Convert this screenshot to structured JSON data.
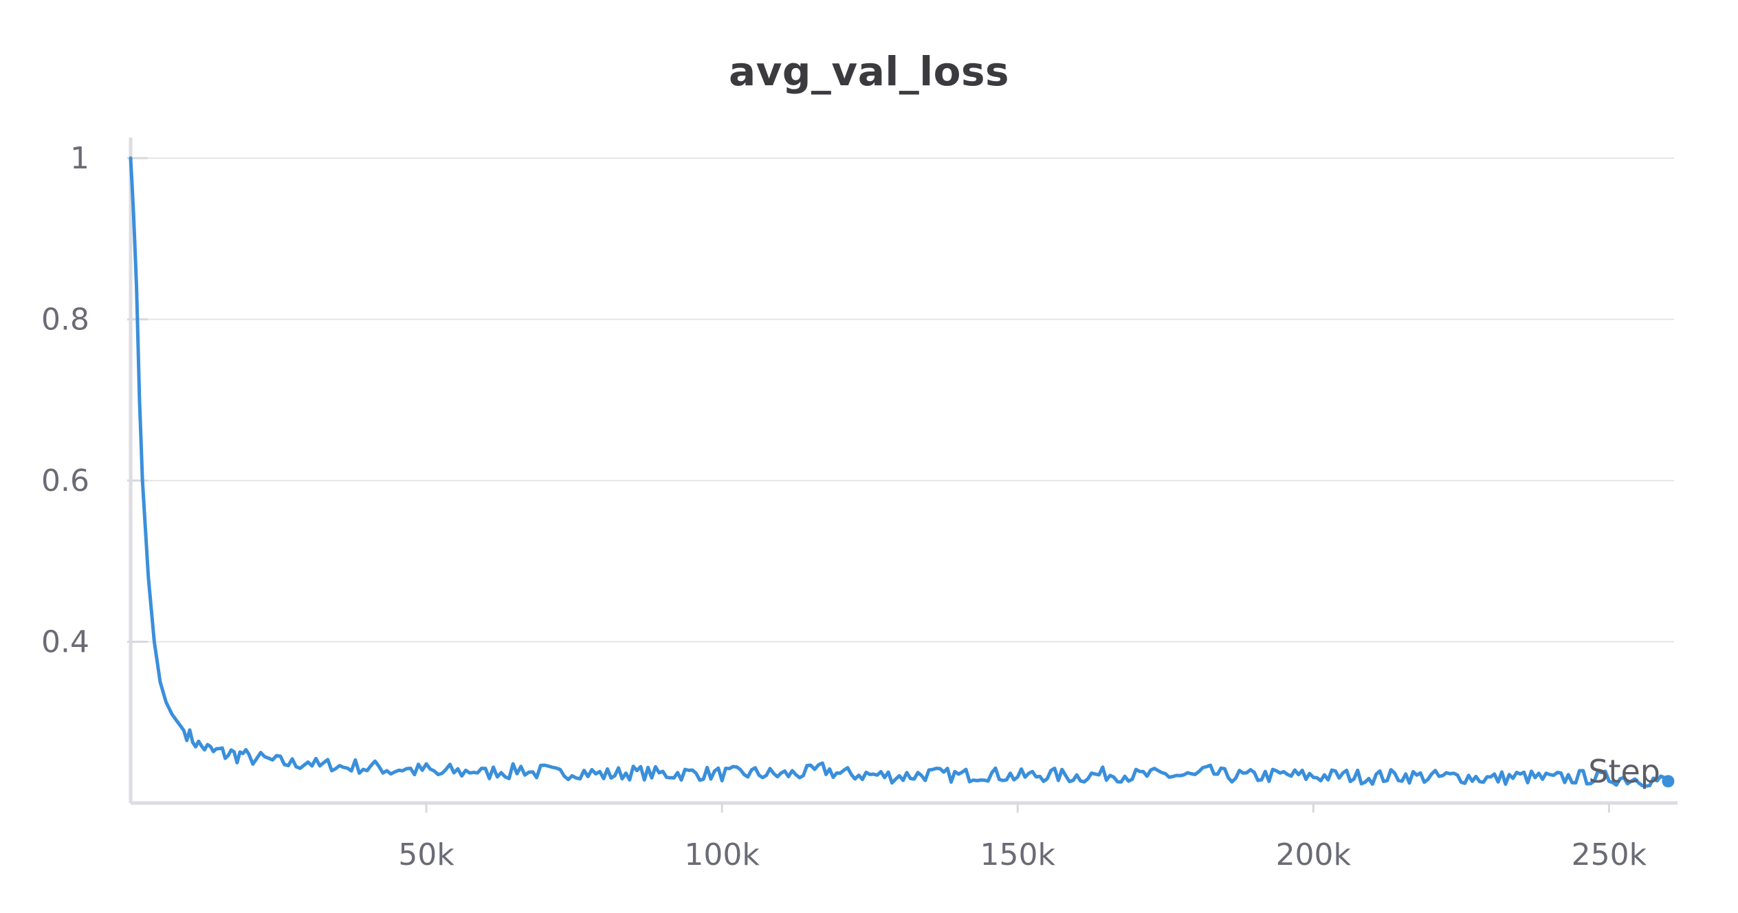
{
  "chart_data": {
    "type": "line",
    "title": "avg_val_loss",
    "xlabel": "Step",
    "ylabel": "",
    "xlim": [
      0,
      261000
    ],
    "ylim": [
      0.2,
      1.0
    ],
    "x_ticks": [
      50000,
      100000,
      150000,
      200000,
      250000
    ],
    "x_tick_labels": [
      "50k",
      "100k",
      "150k",
      "200k",
      "250k"
    ],
    "y_ticks": [
      0.4,
      0.6,
      0.8,
      1.0
    ],
    "y_tick_labels": [
      "0.4",
      "0.6",
      "0.8",
      "1"
    ],
    "grid": true,
    "line_color": "#3a8fdb",
    "series": [
      {
        "x": [
          0,
          500,
          1000,
          1500,
          2000,
          3000,
          4000,
          5000,
          6000,
          7000,
          8000,
          9000,
          10000,
          11000,
          12000,
          13000,
          14000,
          15000,
          16000,
          17000,
          18000,
          19000,
          20000,
          22000,
          24000,
          26000,
          28000,
          30000,
          32000,
          34000,
          36000,
          38000,
          40000,
          42000,
          44000,
          46000,
          48000,
          50000,
          52000,
          54000,
          56000,
          58000,
          60000,
          62000,
          64000,
          66000,
          68000,
          70000,
          72000,
          74000,
          76000,
          78000,
          80000,
          85000,
          90000,
          95000,
          100000,
          105000,
          110000,
          115000,
          117000,
          120000,
          125000,
          130000,
          135000,
          140000,
          145000,
          150000,
          155000,
          160000,
          165000,
          170000,
          175000,
          180000,
          182000,
          185000,
          190000,
          195000,
          200000,
          205000,
          210000,
          215000,
          220000,
          225000,
          230000,
          235000,
          240000,
          245000,
          250000,
          255000,
          260000
        ],
        "y": [
          1.0,
          0.93,
          0.84,
          0.7,
          0.6,
          0.48,
          0.4,
          0.35,
          0.325,
          0.31,
          0.3,
          0.29,
          0.283,
          0.275,
          0.27,
          0.268,
          0.263,
          0.265,
          0.26,
          0.262,
          0.258,
          0.262,
          0.255,
          0.255,
          0.252,
          0.25,
          0.248,
          0.252,
          0.245,
          0.248,
          0.244,
          0.246,
          0.243,
          0.245,
          0.24,
          0.243,
          0.24,
          0.242,
          0.235,
          0.24,
          0.238,
          0.241,
          0.236,
          0.24,
          0.238,
          0.243,
          0.237,
          0.24,
          0.236,
          0.238,
          0.239,
          0.237,
          0.235,
          0.238,
          0.236,
          0.237,
          0.236,
          0.237,
          0.235,
          0.238,
          0.242,
          0.236,
          0.235,
          0.233,
          0.236,
          0.234,
          0.236,
          0.233,
          0.235,
          0.233,
          0.236,
          0.234,
          0.235,
          0.233,
          0.239,
          0.234,
          0.233,
          0.235,
          0.233,
          0.234,
          0.232,
          0.234,
          0.232,
          0.233,
          0.23,
          0.233,
          0.23,
          0.232,
          0.231,
          0.23,
          0.227
        ]
      }
    ]
  }
}
